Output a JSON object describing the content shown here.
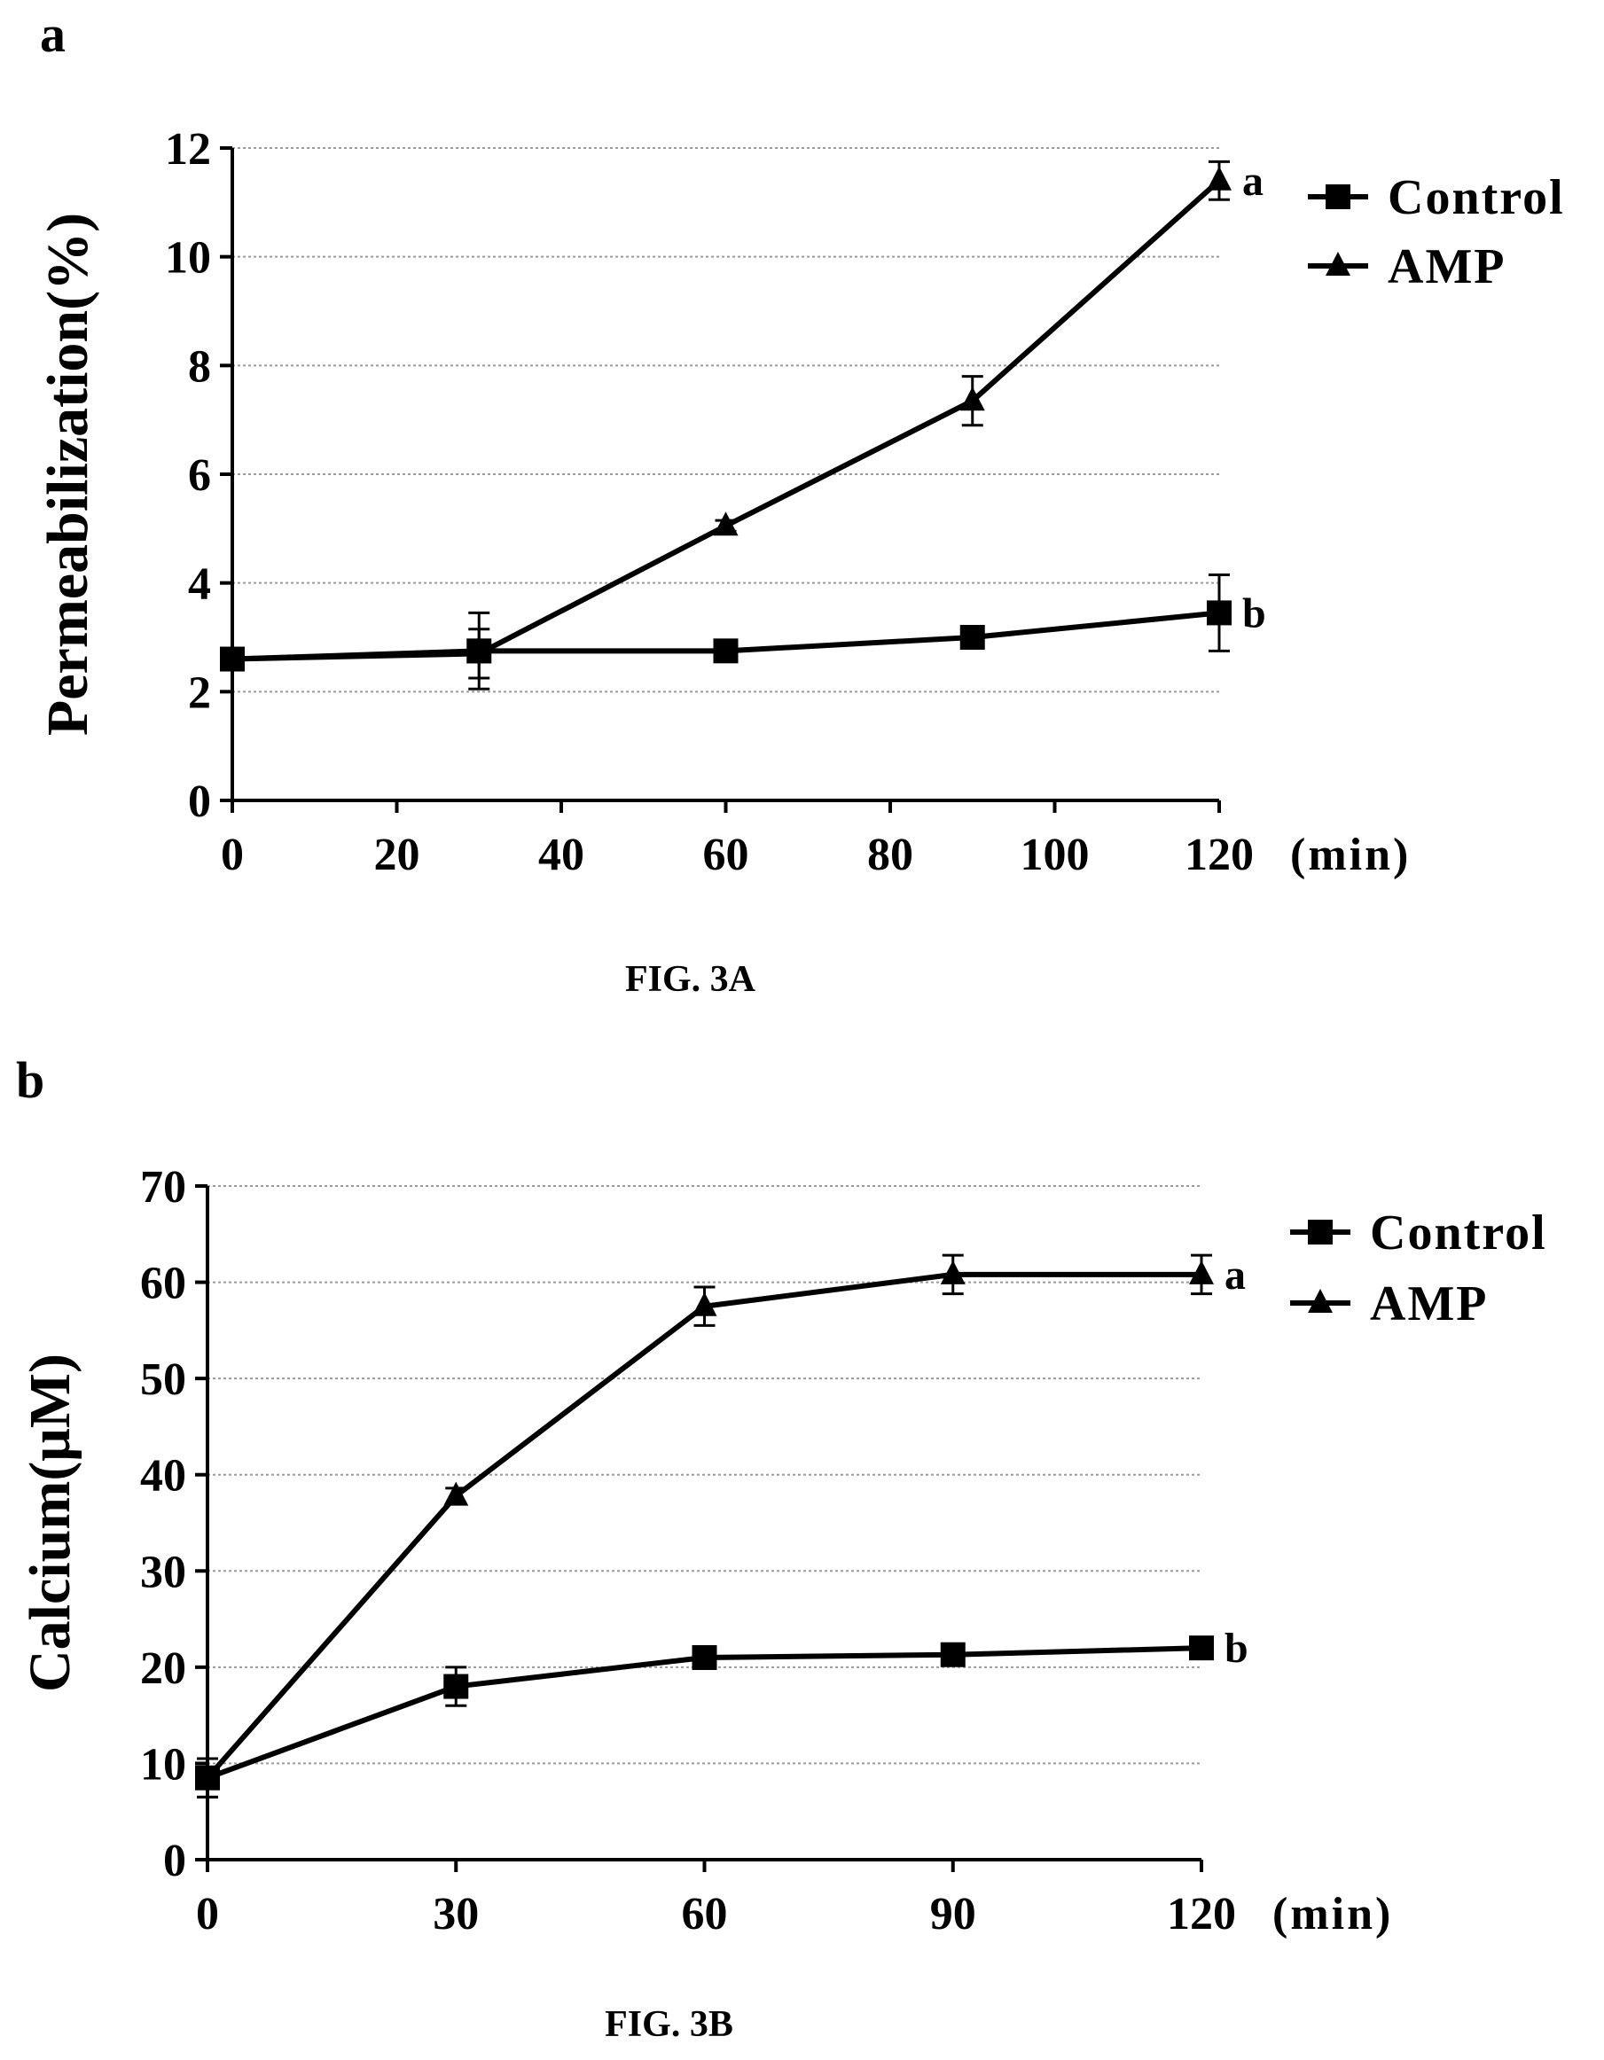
{
  "chart_data": [
    {
      "type": "line",
      "panel_label": "a",
      "caption": "FIG. 3A",
      "ylabel": "Permeabilization(%)",
      "xunit": "(min)",
      "xlim": [
        0,
        120
      ],
      "ylim": [
        0,
        12
      ],
      "xticks": [
        0,
        20,
        40,
        60,
        80,
        100,
        120
      ],
      "yticks": [
        0,
        2,
        4,
        6,
        8,
        10,
        12
      ],
      "grid": true,
      "legend_position": "top-right",
      "series": [
        {
          "name": "Control",
          "marker": "square",
          "x": [
            0,
            30,
            60,
            90,
            120
          ],
          "y": [
            2.6,
            2.75,
            2.75,
            3.0,
            3.45
          ],
          "err": [
            0.1,
            0.7,
            0.15,
            0.12,
            0.7
          ],
          "sig": "b"
        },
        {
          "name": "AMP",
          "marker": "triangle",
          "x": [
            0,
            30,
            60,
            90,
            120
          ],
          "y": [
            2.6,
            2.7,
            5.05,
            7.35,
            11.4
          ],
          "err": [
            0.1,
            0.45,
            0.1,
            0.45,
            0.35
          ],
          "sig": "a"
        }
      ]
    },
    {
      "type": "line",
      "panel_label": "b",
      "caption": "FIG. 3B",
      "ylabel": "Calcium(μM)",
      "xunit": "(min)",
      "xlim": [
        0,
        120
      ],
      "ylim": [
        0,
        70
      ],
      "xticks": [
        0,
        30,
        60,
        90,
        120
      ],
      "yticks": [
        0,
        10,
        20,
        30,
        40,
        50,
        60,
        70
      ],
      "grid": true,
      "legend_position": "top-right",
      "series": [
        {
          "name": "Control",
          "marker": "square",
          "x": [
            0,
            30,
            60,
            90,
            120
          ],
          "y": [
            8.5,
            18.0,
            21.0,
            21.3,
            22.0
          ],
          "err": [
            2.0,
            2.0,
            1.0,
            0.8,
            0.8
          ],
          "sig": "b"
        },
        {
          "name": "AMP",
          "marker": "triangle",
          "x": [
            0,
            30,
            60,
            90,
            120
          ],
          "y": [
            8.5,
            37.8,
            57.5,
            60.8,
            60.8
          ],
          "err": [
            2.0,
            0.8,
            2.0,
            2.0,
            2.0
          ],
          "sig": "a"
        }
      ]
    }
  ]
}
